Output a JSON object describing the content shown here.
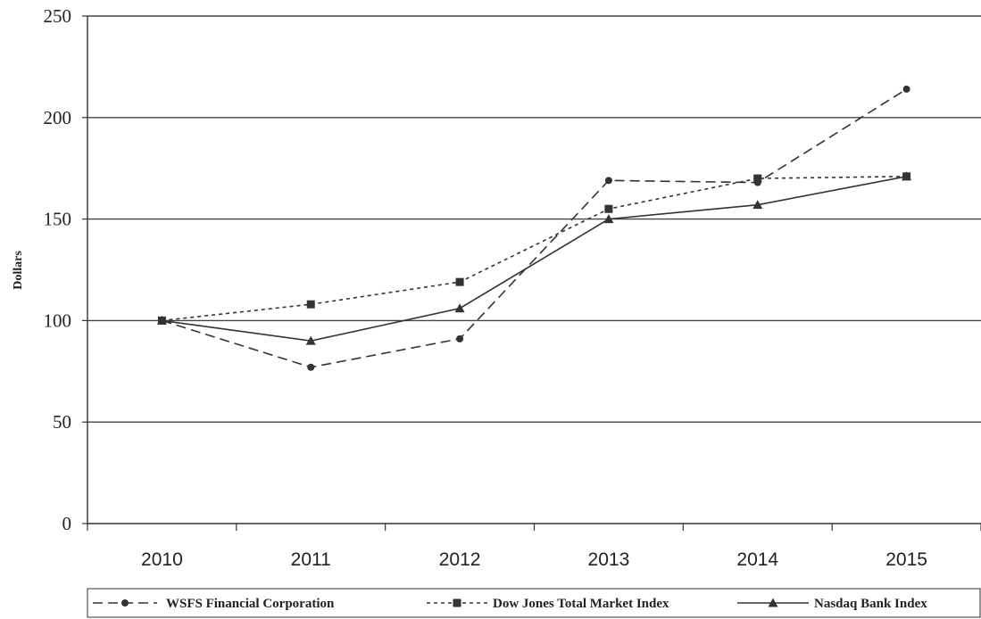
{
  "chart_data": {
    "type": "line",
    "title": "",
    "xlabel": "",
    "ylabel": "Dollars",
    "ylim": [
      0,
      250
    ],
    "yticks": [
      0,
      50,
      100,
      150,
      200,
      250
    ],
    "categories": [
      "2010",
      "2011",
      "2012",
      "2013",
      "2014",
      "2015"
    ],
    "grid": "horizontal",
    "legend_position": "bottom",
    "series": [
      {
        "name": "WSFS Financial Corporation",
        "values": [
          100,
          77,
          91,
          169,
          168,
          214
        ],
        "line_style": "dashed",
        "marker": "circle",
        "color": "#333333"
      },
      {
        "name": "Dow Jones Total Market Index",
        "values": [
          100,
          108,
          119,
          155,
          170,
          171
        ],
        "line_style": "dotted",
        "marker": "square",
        "color": "#333333"
      },
      {
        "name": "Nasdaq Bank Index",
        "values": [
          100,
          90,
          106,
          150,
          157,
          171
        ],
        "line_style": "solid",
        "marker": "triangle",
        "color": "#333333"
      }
    ]
  }
}
